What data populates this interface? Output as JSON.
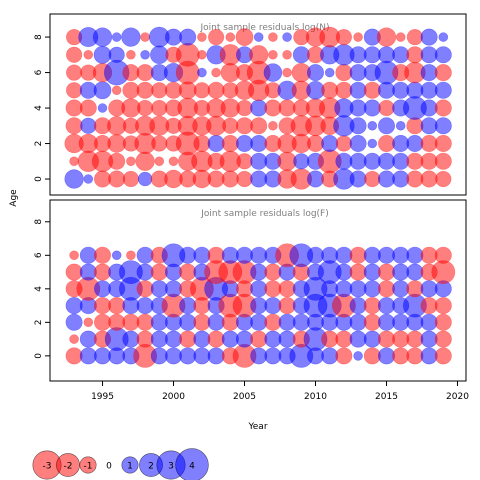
{
  "colors": {
    "negative": "#ff0000",
    "positive": "#0000ff",
    "bubble_opacity": 0.5,
    "frame": "#000000",
    "title_text": "#7f7f7f"
  },
  "axes": {
    "xlabel": "Year",
    "ylabel": "Age",
    "x_ticks": [
      "1995",
      "2000",
      "2005",
      "2010",
      "2015",
      "2020"
    ],
    "y_ticks": [
      "0",
      "2",
      "4",
      "6",
      "8"
    ]
  },
  "legend": {
    "values": [
      -3,
      -2,
      -1,
      0,
      1,
      2,
      3,
      4
    ],
    "labels": [
      "-3",
      "-2",
      "-1",
      "0",
      "1",
      "2",
      "3",
      "4"
    ]
  },
  "chart_data": [
    {
      "type": "bubble",
      "title": "Joint sample residuals log(N)",
      "xlim": [
        1991.3,
        2020.6
      ],
      "ylim": [
        -0.9,
        9.3
      ],
      "x": [
        1993,
        1994,
        1995,
        1996,
        1997,
        1998,
        1999,
        2000,
        2001,
        2002,
        2003,
        2004,
        2005,
        2006,
        2007,
        2008,
        2009,
        2010,
        2011,
        2012,
        2013,
        2014,
        2015,
        2016,
        2017,
        2018,
        2019
      ],
      "ages": [
        0,
        1,
        2,
        3,
        4,
        5,
        6,
        7,
        8
      ],
      "residuals": [
        [
          1.3,
          -0.3,
          -1.3,
          -1.0,
          -1.0,
          -0.9,
          -0.9,
          -0.9,
          -0.9
        ],
        [
          0.3,
          -1.6,
          -1.3,
          0.9,
          -1.0,
          1.0,
          -0.9,
          -0.3,
          1.4
        ],
        [
          -1.0,
          -1.6,
          -1.0,
          -1.0,
          0.3,
          1.1,
          -1.3,
          1.1,
          1.3
        ],
        [
          -1.0,
          -1.0,
          -1.2,
          -1.3,
          -1.0,
          -0.3,
          2.3,
          0.9,
          0.3
        ],
        [
          -0.9,
          -0.3,
          -0.9,
          -0.9,
          -1.3,
          -1.0,
          -1.0,
          -0.3,
          1.3
        ],
        [
          0.7,
          -1.3,
          -1.6,
          -1.4,
          -0.9,
          -1.0,
          -1.0,
          0.3,
          -0.3
        ],
        [
          -1.0,
          -0.3,
          -0.9,
          -1.4,
          -0.9,
          -0.9,
          1.0,
          1.2,
          1.5
        ],
        [
          -1.2,
          -0.3,
          -0.9,
          -0.9,
          -1.0,
          -1.0,
          1.3,
          -0.9,
          1.0
        ],
        [
          -1.0,
          -1.3,
          -2.0,
          -1.4,
          -1.5,
          -1.1,
          -2.0,
          -2.0,
          1.0
        ],
        [
          -1.2,
          -1.6,
          -1.0,
          -1.3,
          -0.9,
          -0.9,
          0.3,
          -0.3,
          -0.3
        ],
        [
          -1.0,
          -1.0,
          1.0,
          -1.4,
          -1.3,
          -1.0,
          -0.3,
          1.3,
          -0.9
        ],
        [
          -1.0,
          -1.6,
          -1.0,
          -0.9,
          -1.3,
          -0.9,
          -1.3,
          -1.6,
          -0.3
        ],
        [
          -0.9,
          -0.9,
          1.0,
          -1.0,
          -0.9,
          -1.3,
          -1.0,
          1.0,
          -1.1
        ],
        [
          1.0,
          1.0,
          1.0,
          -1.0,
          1.0,
          -1.6,
          -2.0,
          -1.3,
          0.3
        ],
        [
          1.0,
          1.0,
          -1.0,
          -0.3,
          -1.0,
          -0.9,
          1.2,
          -0.3,
          -0.3
        ],
        [
          -1.3,
          -1.3,
          -1.3,
          -1.0,
          -1.0,
          1.3,
          -0.3,
          -0.3,
          0.3
        ],
        [
          -1.6,
          0.9,
          -1.3,
          -1.6,
          -1.0,
          -1.3,
          -1.3,
          1.0,
          -0.9
        ],
        [
          1.0,
          1.0,
          -1.0,
          -1.5,
          -1.3,
          1.2,
          1.0,
          -1.0,
          -1.3
        ],
        [
          -1.0,
          -2.0,
          1.0,
          -1.2,
          -1.6,
          -1.0,
          0.3,
          1.3,
          -1.5
        ],
        [
          1.6,
          1.0,
          -0.9,
          1.6,
          1.3,
          -1.0,
          -1.0,
          1.6,
          -0.9
        ],
        [
          1.0,
          1.0,
          1.0,
          1.0,
          1.0,
          1.0,
          1.0,
          1.0,
          -0.3
        ],
        [
          -0.9,
          1.0,
          0.3,
          0.3,
          1.0,
          -1.0,
          1.0,
          1.0,
          1.0
        ],
        [
          1.0,
          1.0,
          -1.0,
          1.0,
          -0.9,
          1.0,
          2.0,
          1.0,
          -1.3
        ],
        [
          1.0,
          1.0,
          1.0,
          0.3,
          1.0,
          1.0,
          -1.0,
          1.0,
          -0.3
        ],
        [
          -1.0,
          -1.0,
          1.0,
          -1.0,
          2.0,
          1.0,
          -1.6,
          -1.0,
          -0.9
        ],
        [
          -1.0,
          -1.0,
          -1.0,
          1.0,
          1.0,
          1.0,
          1.0,
          1.0,
          1.0
        ],
        [
          -0.9,
          -1.0,
          -1.0,
          1.0,
          -1.0,
          1.0,
          -1.0,
          1.0,
          0.3
        ]
      ]
    },
    {
      "type": "bubble",
      "title": "Joint sample residuals log(F)",
      "xlim": [
        1991.3,
        2020.6
      ],
      "ylim": [
        -1.5,
        9.3
      ],
      "x": [
        1993,
        1994,
        1995,
        1996,
        1997,
        1998,
        1999,
        2000,
        2001,
        2002,
        2003,
        2004,
        2005,
        2006,
        2007,
        2008,
        2009,
        2010,
        2011,
        2012,
        2013,
        2014,
        2015,
        2016,
        2017,
        2018,
        2019
      ],
      "ages": [
        0,
        1,
        2,
        3,
        4,
        5,
        6
      ],
      "residuals": [
        [
          -1.0,
          -0.3,
          1.0,
          1.0,
          -1.0,
          -1.0,
          -0.3
        ],
        [
          1.0,
          1.0,
          -0.3,
          1.0,
          -2.0,
          1.0,
          1.0
        ],
        [
          1.0,
          -1.0,
          -1.0,
          -1.0,
          1.0,
          -1.0,
          -1.0
        ],
        [
          1.0,
          2.0,
          -1.0,
          -1.0,
          1.0,
          1.0,
          0.3
        ],
        [
          1.0,
          1.0,
          -1.0,
          1.0,
          2.0,
          2.0,
          -0.3
        ],
        [
          -2.0,
          -1.0,
          -1.0,
          1.0,
          -1.0,
          1.0,
          1.0
        ],
        [
          1.0,
          1.0,
          1.0,
          1.0,
          1.0,
          -1.0,
          -1.0
        ],
        [
          1.0,
          1.0,
          1.0,
          -2.0,
          1.0,
          1.0,
          2.0
        ],
        [
          1.0,
          -1.0,
          1.0,
          1.0,
          -1.0,
          -1.0,
          1.0
        ],
        [
          1.0,
          1.0,
          -1.0,
          -1.0,
          -2.0,
          1.0,
          1.0
        ],
        [
          1.0,
          -1.0,
          1.0,
          1.0,
          2.0,
          -2.0,
          -1.0
        ],
        [
          -1.0,
          1.0,
          -1.0,
          -2.0,
          1.0,
          -2.0,
          1.0
        ],
        [
          -2.0,
          1.0,
          1.0,
          -2.0,
          -1.0,
          -2.0,
          1.0
        ],
        [
          1.0,
          -1.0,
          1.0,
          1.0,
          1.0,
          1.0,
          1.0
        ],
        [
          1.0,
          1.0,
          -1.0,
          1.0,
          -1.0,
          -1.0,
          1.0
        ],
        [
          1.0,
          1.0,
          1.0,
          -1.0,
          -1.0,
          1.0,
          -2.0
        ],
        [
          2.0,
          -1.0,
          1.0,
          1.0,
          1.0,
          -1.0,
          2.0
        ],
        [
          1.0,
          2.0,
          1.0,
          2.0,
          2.0,
          1.0,
          1.0
        ],
        [
          1.0,
          -1.0,
          1.0,
          2.0,
          1.0,
          2.0,
          1.0
        ],
        [
          -1.0,
          -1.0,
          1.0,
          -2.0,
          1.0,
          1.0,
          1.0
        ],
        [
          0.3,
          1.0,
          1.0,
          1.0,
          1.0,
          -1.0,
          -1.0
        ],
        [
          -1.0,
          1.0,
          -1.0,
          -1.0,
          1.0,
          1.0,
          1.0
        ],
        [
          1.0,
          -1.0,
          1.0,
          1.0,
          -1.0,
          -1.0,
          1.0
        ],
        [
          -1.0,
          -1.0,
          1.0,
          1.0,
          1.0,
          1.0,
          1.0
        ],
        [
          -1.0,
          -1.0,
          1.0,
          2.0,
          -1.0,
          1.0,
          1.0
        ],
        [
          1.0,
          1.0,
          1.0,
          -1.0,
          1.0,
          -1.0,
          -1.0
        ],
        [
          -1.0,
          -1.0,
          -1.0,
          -1.0,
          1.0,
          -2.0,
          -1.0
        ]
      ]
    }
  ]
}
